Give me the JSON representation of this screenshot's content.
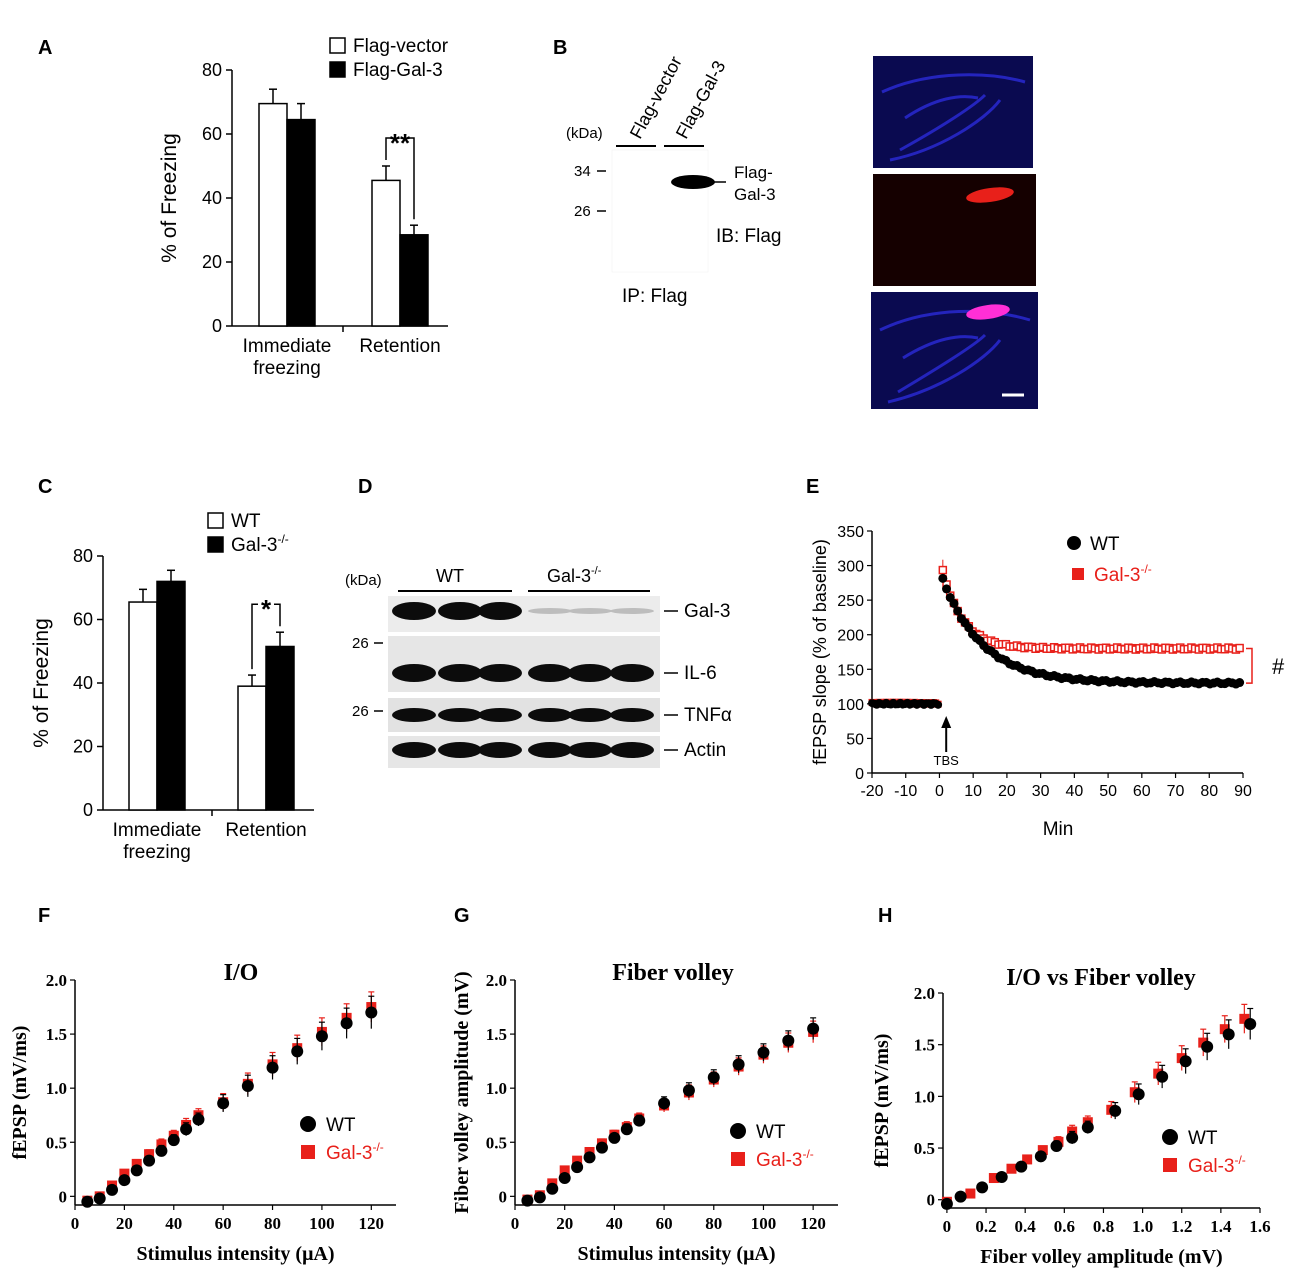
{
  "panel_letters": {
    "A": "A",
    "B": "B",
    "C": "C",
    "D": "D",
    "E": "E",
    "F": "F",
    "G": "G",
    "H": "H"
  },
  "colors": {
    "red": "#e8201a",
    "black": "#000000",
    "blue": "#2a2ad8",
    "dark_blue": "#0a0a50"
  },
  "blot_b": {
    "kda_label": "(kDa)",
    "lanes": [
      "Flag-vector",
      "Flag-Gal-3"
    ],
    "markers": [
      "34",
      "26"
    ],
    "band_label_1": "Flag-",
    "band_label_2": "Gal-3",
    "ib_label": "IB: Flag",
    "ip_label": "IP: Flag"
  },
  "blot_d": {
    "kda_label": "(kDa)",
    "group_wt": "WT",
    "group_ko": "Gal-3",
    "group_ko_sup": "-/-",
    "markers": [
      "26",
      "26"
    ],
    "bands": [
      "Gal-3",
      "IL-6",
      "TNFα",
      "Actin"
    ]
  },
  "chart_data": [
    {
      "id": "A",
      "type": "bar",
      "ylabel": "% of Freezing",
      "ylim": [
        0,
        80
      ],
      "yticks": [
        0,
        20,
        40,
        60,
        80
      ],
      "categories": [
        "Immediate freezing",
        "Retention"
      ],
      "category_lines": [
        [
          "Immediate",
          "freezing"
        ],
        [
          "Retention"
        ]
      ],
      "series": [
        {
          "name": "Flag-vector",
          "fill": "white",
          "values": [
            69.5,
            45.5
          ],
          "errors": [
            4.5,
            4.5
          ]
        },
        {
          "name": "Flag-Gal-3",
          "fill": "black",
          "values": [
            64.5,
            28.5
          ],
          "errors": [
            5.0,
            3.0
          ]
        }
      ],
      "significance": {
        "label": "**",
        "category": 1
      }
    },
    {
      "id": "C",
      "type": "bar",
      "ylabel": "% of Freezing",
      "ylim": [
        0,
        80
      ],
      "yticks": [
        0,
        20,
        40,
        60,
        80
      ],
      "categories": [
        "Immediate freezing",
        "Retention"
      ],
      "category_lines": [
        [
          "Immediate",
          "freezing"
        ],
        [
          "Retention"
        ]
      ],
      "series": [
        {
          "name": "WT",
          "name_sup": "",
          "fill": "white",
          "values": [
            65.5,
            39.0
          ],
          "errors": [
            4.0,
            3.5
          ]
        },
        {
          "name": "Gal-3",
          "name_sup": "-/-",
          "fill": "black",
          "values": [
            72.0,
            51.5
          ],
          "errors": [
            3.5,
            4.5
          ]
        }
      ],
      "significance": {
        "label": "*",
        "category": 1
      }
    },
    {
      "id": "E",
      "type": "scatter",
      "ylabel": "fEPSP slope (% of baseline)",
      "xlabel": "Min",
      "xlim": [
        -20,
        90
      ],
      "ylim": [
        0,
        350
      ],
      "xticks": [
        -20,
        -10,
        0,
        10,
        20,
        30,
        40,
        50,
        60,
        70,
        80,
        90
      ],
      "yticks": [
        0,
        50,
        100,
        150,
        200,
        250,
        300,
        350
      ],
      "annotation": "TBS",
      "significance": "#",
      "series": [
        {
          "name": "WT",
          "name_sup": "",
          "marker": "circle",
          "baseline": 100,
          "peak": 280,
          "plateau": 130,
          "tau": 12
        },
        {
          "name": "Gal-3",
          "name_sup": "-/-",
          "marker": "square",
          "baseline": 101,
          "peak": 292,
          "plateau": 180,
          "tau": 6
        }
      ]
    },
    {
      "id": "F",
      "type": "scatter",
      "title": "I/O",
      "xlabel": "Stimulus intensity (μA)",
      "ylabel": "fEPSP (mV/ms)",
      "xlim": [
        0,
        130
      ],
      "ylim": [
        -0.08,
        2.0
      ],
      "xticks": [
        0,
        20,
        40,
        60,
        80,
        100,
        120
      ],
      "yticks": [
        0,
        0.5,
        1.0,
        1.5,
        2.0
      ],
      "ytick_labels": [
        "0",
        "0.5",
        "1.0",
        "1.5",
        "2.0"
      ],
      "x": [
        5,
        10,
        15,
        20,
        25,
        30,
        35,
        40,
        45,
        50,
        60,
        70,
        80,
        90,
        100,
        110,
        120
      ],
      "series": [
        {
          "name": "WT",
          "name_sup": "",
          "marker": "circle",
          "values": [
            -0.05,
            -0.02,
            0.06,
            0.15,
            0.24,
            0.33,
            0.42,
            0.52,
            0.62,
            0.71,
            0.86,
            1.02,
            1.19,
            1.34,
            1.48,
            1.6,
            1.7
          ],
          "errors": [
            0.02,
            0.02,
            0.03,
            0.03,
            0.04,
            0.04,
            0.05,
            0.05,
            0.06,
            0.06,
            0.08,
            0.1,
            0.11,
            0.12,
            0.13,
            0.14,
            0.15
          ]
        },
        {
          "name": "Gal-3",
          "name_sup": "-/-",
          "marker": "square",
          "values": [
            -0.04,
            0.0,
            0.1,
            0.21,
            0.3,
            0.39,
            0.48,
            0.56,
            0.66,
            0.75,
            0.87,
            1.04,
            1.22,
            1.37,
            1.52,
            1.65,
            1.75
          ],
          "errors": [
            0.02,
            0.02,
            0.03,
            0.03,
            0.04,
            0.04,
            0.05,
            0.05,
            0.06,
            0.06,
            0.08,
            0.1,
            0.11,
            0.12,
            0.13,
            0.13,
            0.14
          ]
        }
      ]
    },
    {
      "id": "G",
      "type": "scatter",
      "title": "Fiber volley",
      "xlabel": "Stimulus intensity (μA)",
      "ylabel": "Fiber volley amplitude (mV)",
      "xlim": [
        0,
        130
      ],
      "ylim": [
        -0.08,
        2.0
      ],
      "xticks": [
        0,
        20,
        40,
        60,
        80,
        100,
        120
      ],
      "yticks": [
        0,
        0.5,
        1.0,
        1.5,
        2.0
      ],
      "ytick_labels": [
        "0",
        "0.5",
        "1.0",
        "1.5",
        "2.0"
      ],
      "x": [
        5,
        10,
        15,
        20,
        25,
        30,
        35,
        40,
        45,
        50,
        60,
        70,
        80,
        90,
        100,
        110,
        120
      ],
      "series": [
        {
          "name": "WT",
          "name_sup": "",
          "marker": "circle",
          "values": [
            -0.04,
            -0.01,
            0.07,
            0.17,
            0.27,
            0.36,
            0.45,
            0.54,
            0.62,
            0.7,
            0.86,
            0.98,
            1.1,
            1.22,
            1.33,
            1.44,
            1.55
          ],
          "errors": [
            0.02,
            0.02,
            0.03,
            0.03,
            0.03,
            0.04,
            0.04,
            0.04,
            0.05,
            0.05,
            0.06,
            0.07,
            0.07,
            0.08,
            0.08,
            0.09,
            0.1
          ]
        },
        {
          "name": "Gal-3",
          "name_sup": "-/-",
          "marker": "square",
          "values": [
            -0.03,
            0.01,
            0.12,
            0.24,
            0.33,
            0.41,
            0.49,
            0.57,
            0.64,
            0.72,
            0.84,
            0.96,
            1.08,
            1.2,
            1.31,
            1.42,
            1.52
          ],
          "errors": [
            0.02,
            0.02,
            0.03,
            0.03,
            0.03,
            0.04,
            0.04,
            0.04,
            0.05,
            0.05,
            0.06,
            0.07,
            0.07,
            0.08,
            0.08,
            0.09,
            0.1
          ]
        }
      ]
    },
    {
      "id": "H",
      "type": "scatter",
      "title": "I/O vs Fiber volley",
      "xlabel": "Fiber volley amplitude (mV)",
      "ylabel": "fEPSP (mV/ms)",
      "xlim": [
        -0.02,
        1.6
      ],
      "ylim": [
        -0.08,
        2.0
      ],
      "xticks": [
        0,
        0.2,
        0.4,
        0.6,
        0.8,
        1.0,
        1.2,
        1.4,
        1.6
      ],
      "yticks": [
        0,
        0.5,
        1.0,
        1.5,
        2.0
      ],
      "xtick_labels": [
        "0",
        "0.2",
        "0.4",
        "0.6",
        "0.8",
        "1.0",
        "1.2",
        "1.4",
        "1.6"
      ],
      "ytick_labels": [
        "0",
        "0.5",
        "1.0",
        "1.5",
        "2.0"
      ],
      "series": [
        {
          "name": "WT",
          "name_sup": "",
          "marker": "circle",
          "x": [
            0.0,
            0.07,
            0.18,
            0.28,
            0.38,
            0.48,
            0.56,
            0.64,
            0.72,
            0.86,
            0.98,
            1.1,
            1.22,
            1.33,
            1.44,
            1.55
          ],
          "values": [
            -0.04,
            0.03,
            0.12,
            0.22,
            0.32,
            0.42,
            0.52,
            0.6,
            0.7,
            0.86,
            1.02,
            1.19,
            1.34,
            1.48,
            1.6,
            1.7
          ],
          "errors": [
            0.02,
            0.02,
            0.03,
            0.03,
            0.04,
            0.04,
            0.05,
            0.06,
            0.06,
            0.08,
            0.1,
            0.11,
            0.12,
            0.13,
            0.14,
            0.15
          ]
        },
        {
          "name": "Gal-3",
          "name_sup": "-/-",
          "marker": "square",
          "x": [
            0.0,
            0.12,
            0.24,
            0.33,
            0.41,
            0.49,
            0.57,
            0.64,
            0.72,
            0.84,
            0.96,
            1.08,
            1.2,
            1.31,
            1.42,
            1.52
          ],
          "values": [
            -0.02,
            0.06,
            0.21,
            0.3,
            0.39,
            0.48,
            0.56,
            0.66,
            0.75,
            0.87,
            1.04,
            1.22,
            1.37,
            1.52,
            1.65,
            1.75
          ],
          "errors": [
            0.02,
            0.02,
            0.03,
            0.03,
            0.04,
            0.04,
            0.05,
            0.06,
            0.06,
            0.08,
            0.1,
            0.11,
            0.12,
            0.13,
            0.13,
            0.14
          ]
        }
      ]
    }
  ]
}
